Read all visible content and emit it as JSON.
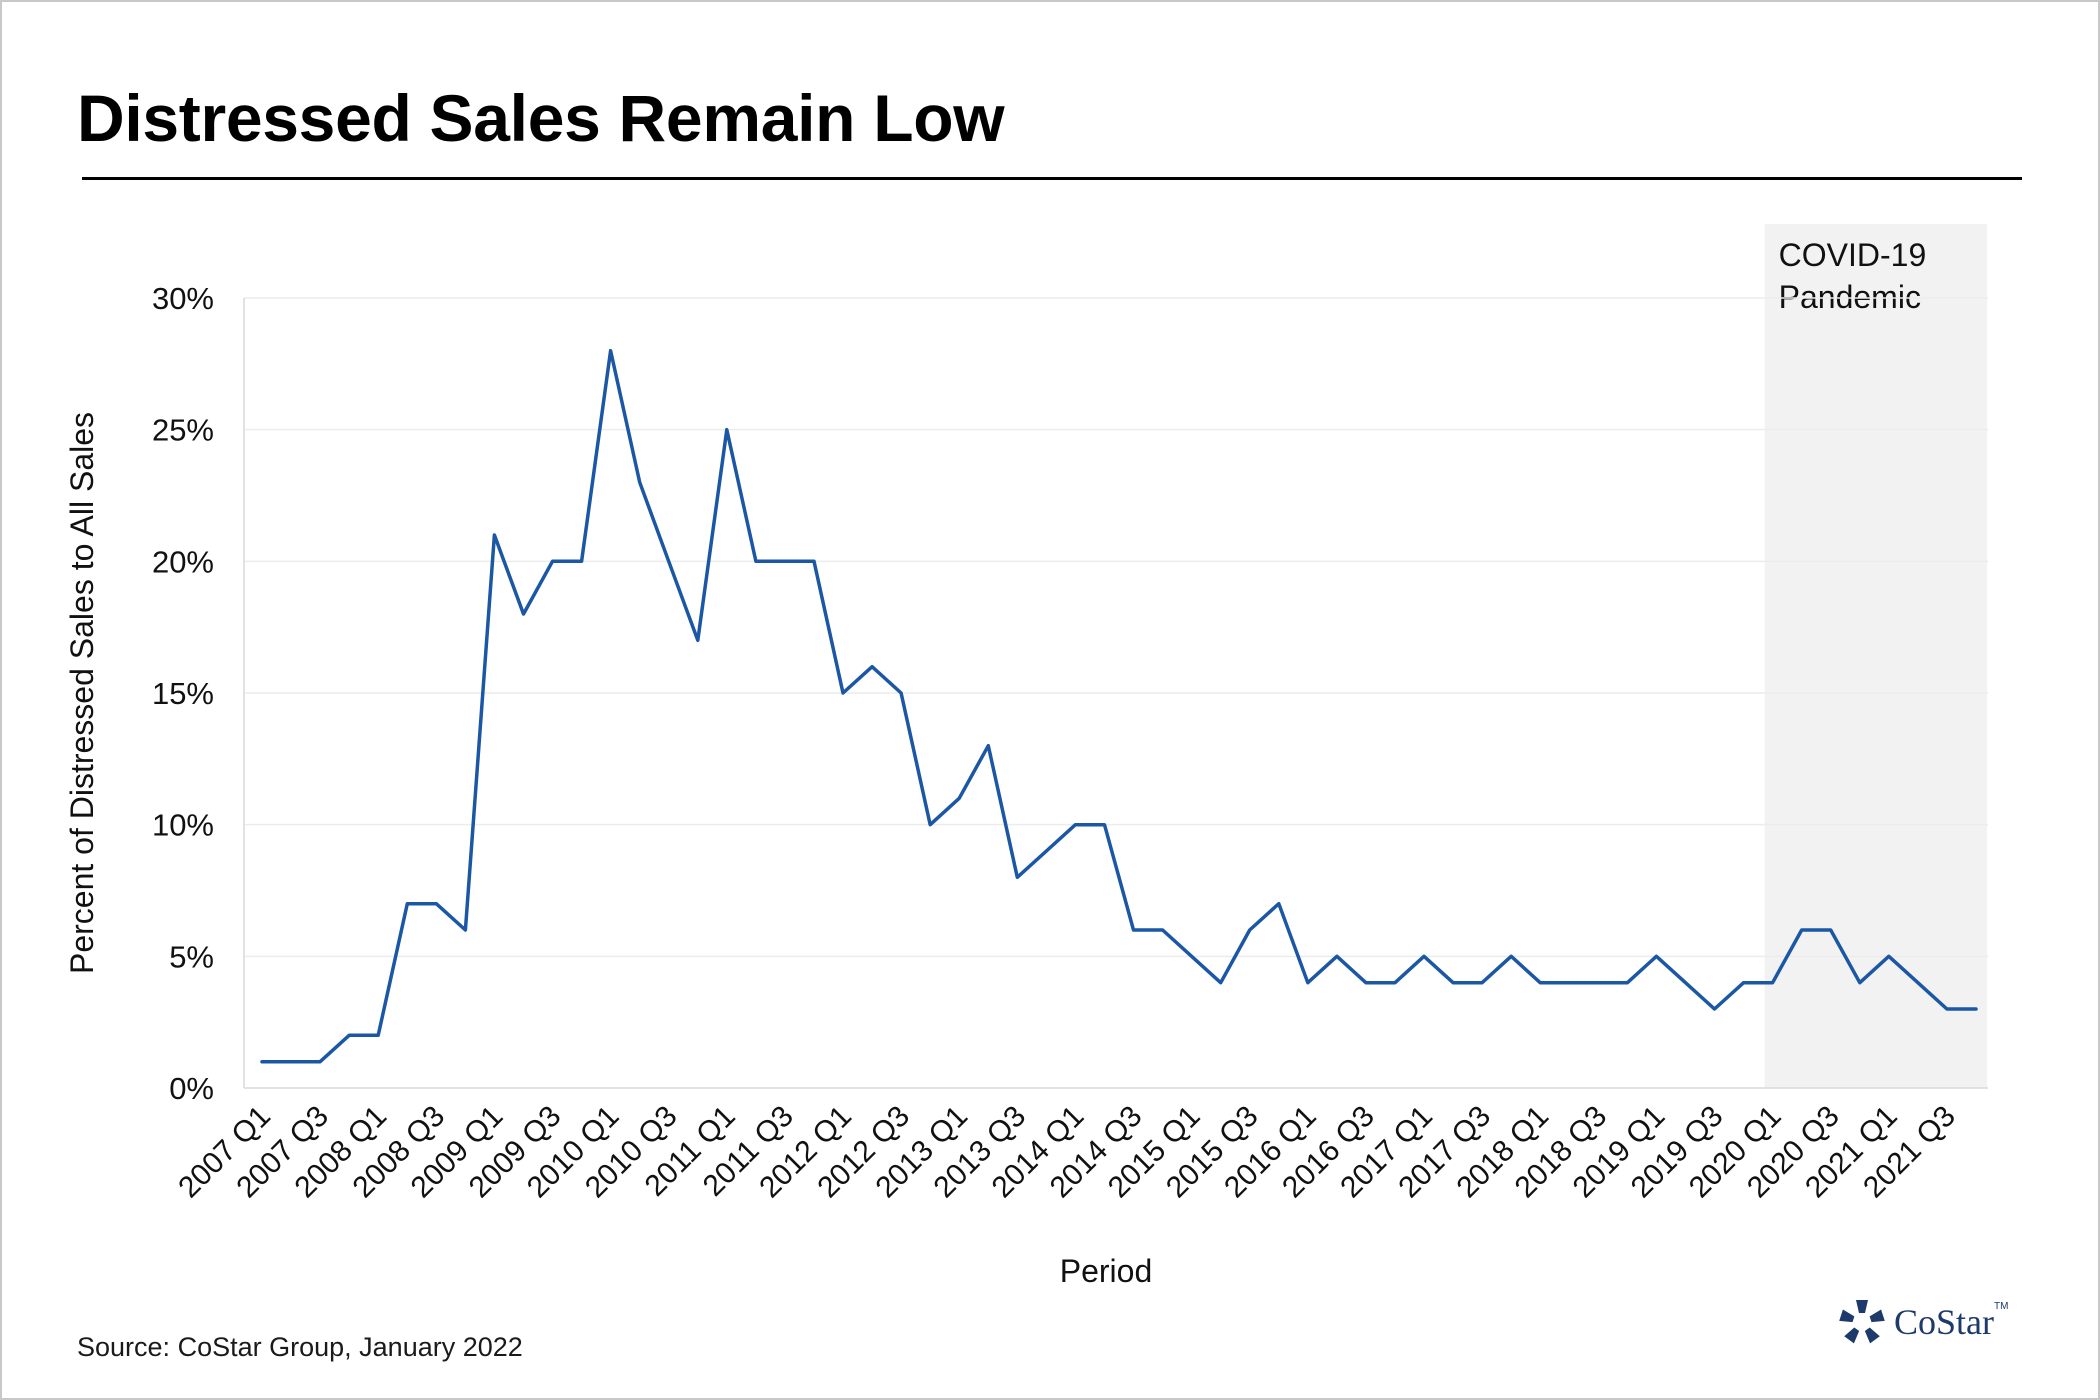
{
  "header": {
    "title": "Distressed Sales Remain Low"
  },
  "footer": {
    "source_label": "Source:",
    "source_text": "CoStar Group, January 2022",
    "logo_text": "CoStar",
    "logo_tm": "TM"
  },
  "colors": {
    "line": "#1b57a4",
    "covid_band": "#f2f2f2",
    "brand": "#1d3a6b"
  },
  "chart_data": {
    "type": "line",
    "title": "",
    "xlabel": "Period",
    "ylabel": "Percent of Distressed Sales to All Sales",
    "ylim": [
      0,
      30
    ],
    "yticks": [
      "0%",
      "5%",
      "10%",
      "15%",
      "20%",
      "25%",
      "30%"
    ],
    "ytick_values": [
      0,
      5,
      10,
      15,
      20,
      25,
      30
    ],
    "grid": "horizontal",
    "legend": "none",
    "x": [
      "2007 Q1",
      "2007 Q2",
      "2007 Q3",
      "2007 Q4",
      "2008 Q1",
      "2008 Q2",
      "2008 Q3",
      "2008 Q4",
      "2009 Q1",
      "2009 Q2",
      "2009 Q3",
      "2009 Q4",
      "2010 Q1",
      "2010 Q2",
      "2010 Q3",
      "2010 Q4",
      "2011 Q1",
      "2011 Q2",
      "2011 Q3",
      "2011 Q4",
      "2012 Q1",
      "2012 Q2",
      "2012 Q3",
      "2012 Q4",
      "2013 Q1",
      "2013 Q2",
      "2013 Q3",
      "2013 Q4",
      "2014 Q1",
      "2014 Q2",
      "2014 Q3",
      "2014 Q4",
      "2015 Q1",
      "2015 Q2",
      "2015 Q3",
      "2015 Q4",
      "2016 Q1",
      "2016 Q2",
      "2016 Q3",
      "2016 Q4",
      "2017 Q1",
      "2017 Q2",
      "2017 Q3",
      "2017 Q4",
      "2018 Q1",
      "2018 Q2",
      "2018 Q3",
      "2018 Q4",
      "2019 Q1",
      "2019 Q2",
      "2019 Q3",
      "2019 Q4",
      "2020 Q1",
      "2020 Q2",
      "2020 Q3",
      "2020 Q4",
      "2021 Q1",
      "2021 Q2",
      "2021 Q3",
      "2021 Q4"
    ],
    "xtick_labels": [
      "2007 Q1",
      "2007 Q3",
      "2008 Q1",
      "2008 Q3",
      "2009 Q1",
      "2009 Q3",
      "2010 Q1",
      "2010 Q3",
      "2011 Q1",
      "2011 Q3",
      "2012 Q1",
      "2012 Q3",
      "2013 Q1",
      "2013 Q3",
      "2014 Q1",
      "2014 Q3",
      "2015 Q1",
      "2015 Q3",
      "2016 Q1",
      "2016 Q3",
      "2017 Q1",
      "2017 Q3",
      "2018 Q1",
      "2018 Q3",
      "2019 Q1",
      "2019 Q3",
      "2020 Q1",
      "2020 Q3",
      "2021 Q1",
      "2021 Q3"
    ],
    "series": [
      {
        "values": [
          1,
          1,
          1,
          2,
          2,
          7,
          7,
          6,
          21,
          18,
          20,
          20,
          28,
          23,
          20,
          17,
          25,
          20,
          20,
          20,
          15,
          16,
          15,
          10,
          11,
          13,
          8,
          9,
          10,
          10,
          6,
          6,
          5,
          4,
          6,
          7,
          4,
          5,
          4,
          4,
          5,
          4,
          4,
          5,
          4,
          4,
          4,
          4,
          5,
          4,
          3,
          4,
          4,
          6,
          6,
          4,
          5,
          4,
          3,
          3
        ]
      }
    ],
    "annotation": {
      "label_line1": "COVID-19",
      "label_line2": "Pandemic",
      "start": "2020 Q1",
      "end": "2021 Q4"
    }
  }
}
